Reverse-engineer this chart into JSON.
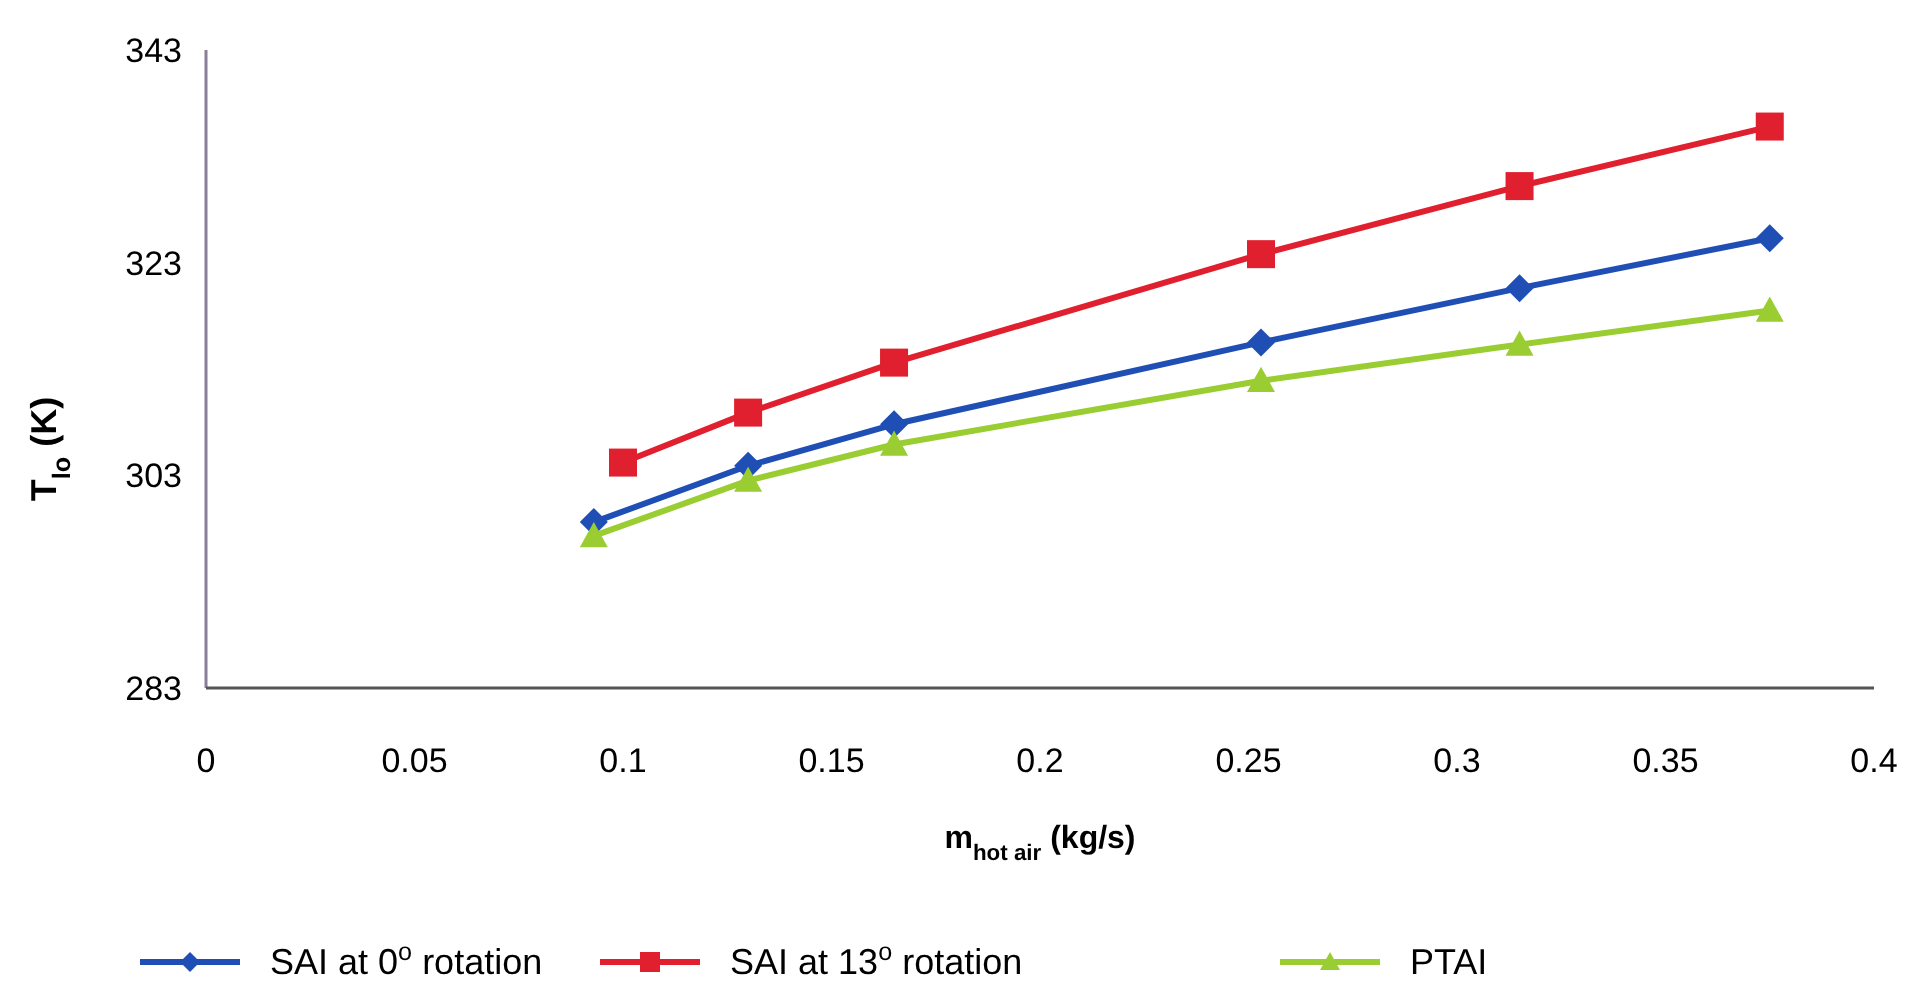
{
  "chart_data": {
    "type": "line",
    "xlabel": "m$_{hot air}$ (kg/s)",
    "ylabel": "T$_{lo}$ (K)",
    "xlim": [
      0,
      0.4
    ],
    "xticks": [
      0,
      0.05,
      0.1,
      0.15,
      0.2,
      0.25,
      0.3,
      0.35,
      0.4
    ],
    "ylim": [
      283,
      343
    ],
    "yticks": [
      283,
      303,
      323,
      343
    ],
    "grid": false,
    "legend": "bottom",
    "line_style": "solid",
    "series": [
      {
        "name": "SAI at 0$^{o}$ rotation",
        "color": "#1f4fb4",
        "marker": "diamond",
        "x": [
          0.093,
          0.13,
          0.165,
          0.253,
          0.315,
          0.375
        ],
        "values": [
          298.6,
          303.9,
          307.8,
          315.5,
          320.6,
          325.3
        ]
      },
      {
        "name": "SAI at 13$^{o}$ rotation",
        "color": "#e0202e",
        "marker": "square",
        "x": [
          0.1,
          0.13,
          0.165,
          0.253,
          0.315,
          0.375
        ],
        "values": [
          304.2,
          308.9,
          313.6,
          323.8,
          330.2,
          335.8
        ]
      },
      {
        "name": "PTAI",
        "color": "#9acd32",
        "marker": "triangle",
        "x": [
          0.093,
          0.13,
          0.165,
          0.253,
          0.315,
          0.375
        ],
        "values": [
          297.3,
          302.5,
          305.9,
          311.9,
          315.3,
          318.5
        ]
      }
    ]
  }
}
